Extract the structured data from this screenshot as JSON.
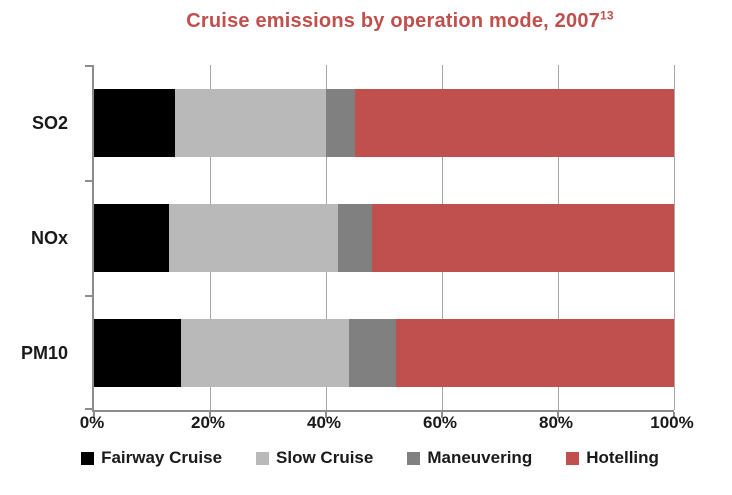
{
  "title": {
    "text": "Cruise emissions by operation mode, 2007",
    "superscript": "13",
    "color": "#C0504D"
  },
  "chart_data": {
    "type": "bar",
    "orientation": "horizontal",
    "stacked": true,
    "title": "Cruise emissions by operation mode, 2007 [13]",
    "categories": [
      "SO2",
      "NOx",
      "PM10"
    ],
    "series": [
      {
        "name": "Fairway Cruise",
        "color": "#000000",
        "values": [
          14,
          13,
          15
        ]
      },
      {
        "name": "Slow Cruise",
        "color": "#b9b9b9",
        "values": [
          26,
          29,
          29
        ]
      },
      {
        "name": "Maneuvering",
        "color": "#808080",
        "values": [
          5,
          6,
          8
        ]
      },
      {
        "name": "Hotelling",
        "color": "#c0504d",
        "values": [
          55,
          52,
          48
        ]
      }
    ],
    "xlabel": "",
    "ylabel": "",
    "xlim": [
      0,
      100
    ],
    "x_ticks": [
      "0%",
      "20%",
      "40%",
      "60%",
      "80%",
      "100%"
    ],
    "x_tick_values": [
      0,
      20,
      40,
      60,
      80,
      100
    ],
    "grid": true,
    "gridline_color": "#a6a6a6",
    "axis_color": "#8c8c8c",
    "legend_position": "bottom",
    "units": "percent of emissions"
  }
}
